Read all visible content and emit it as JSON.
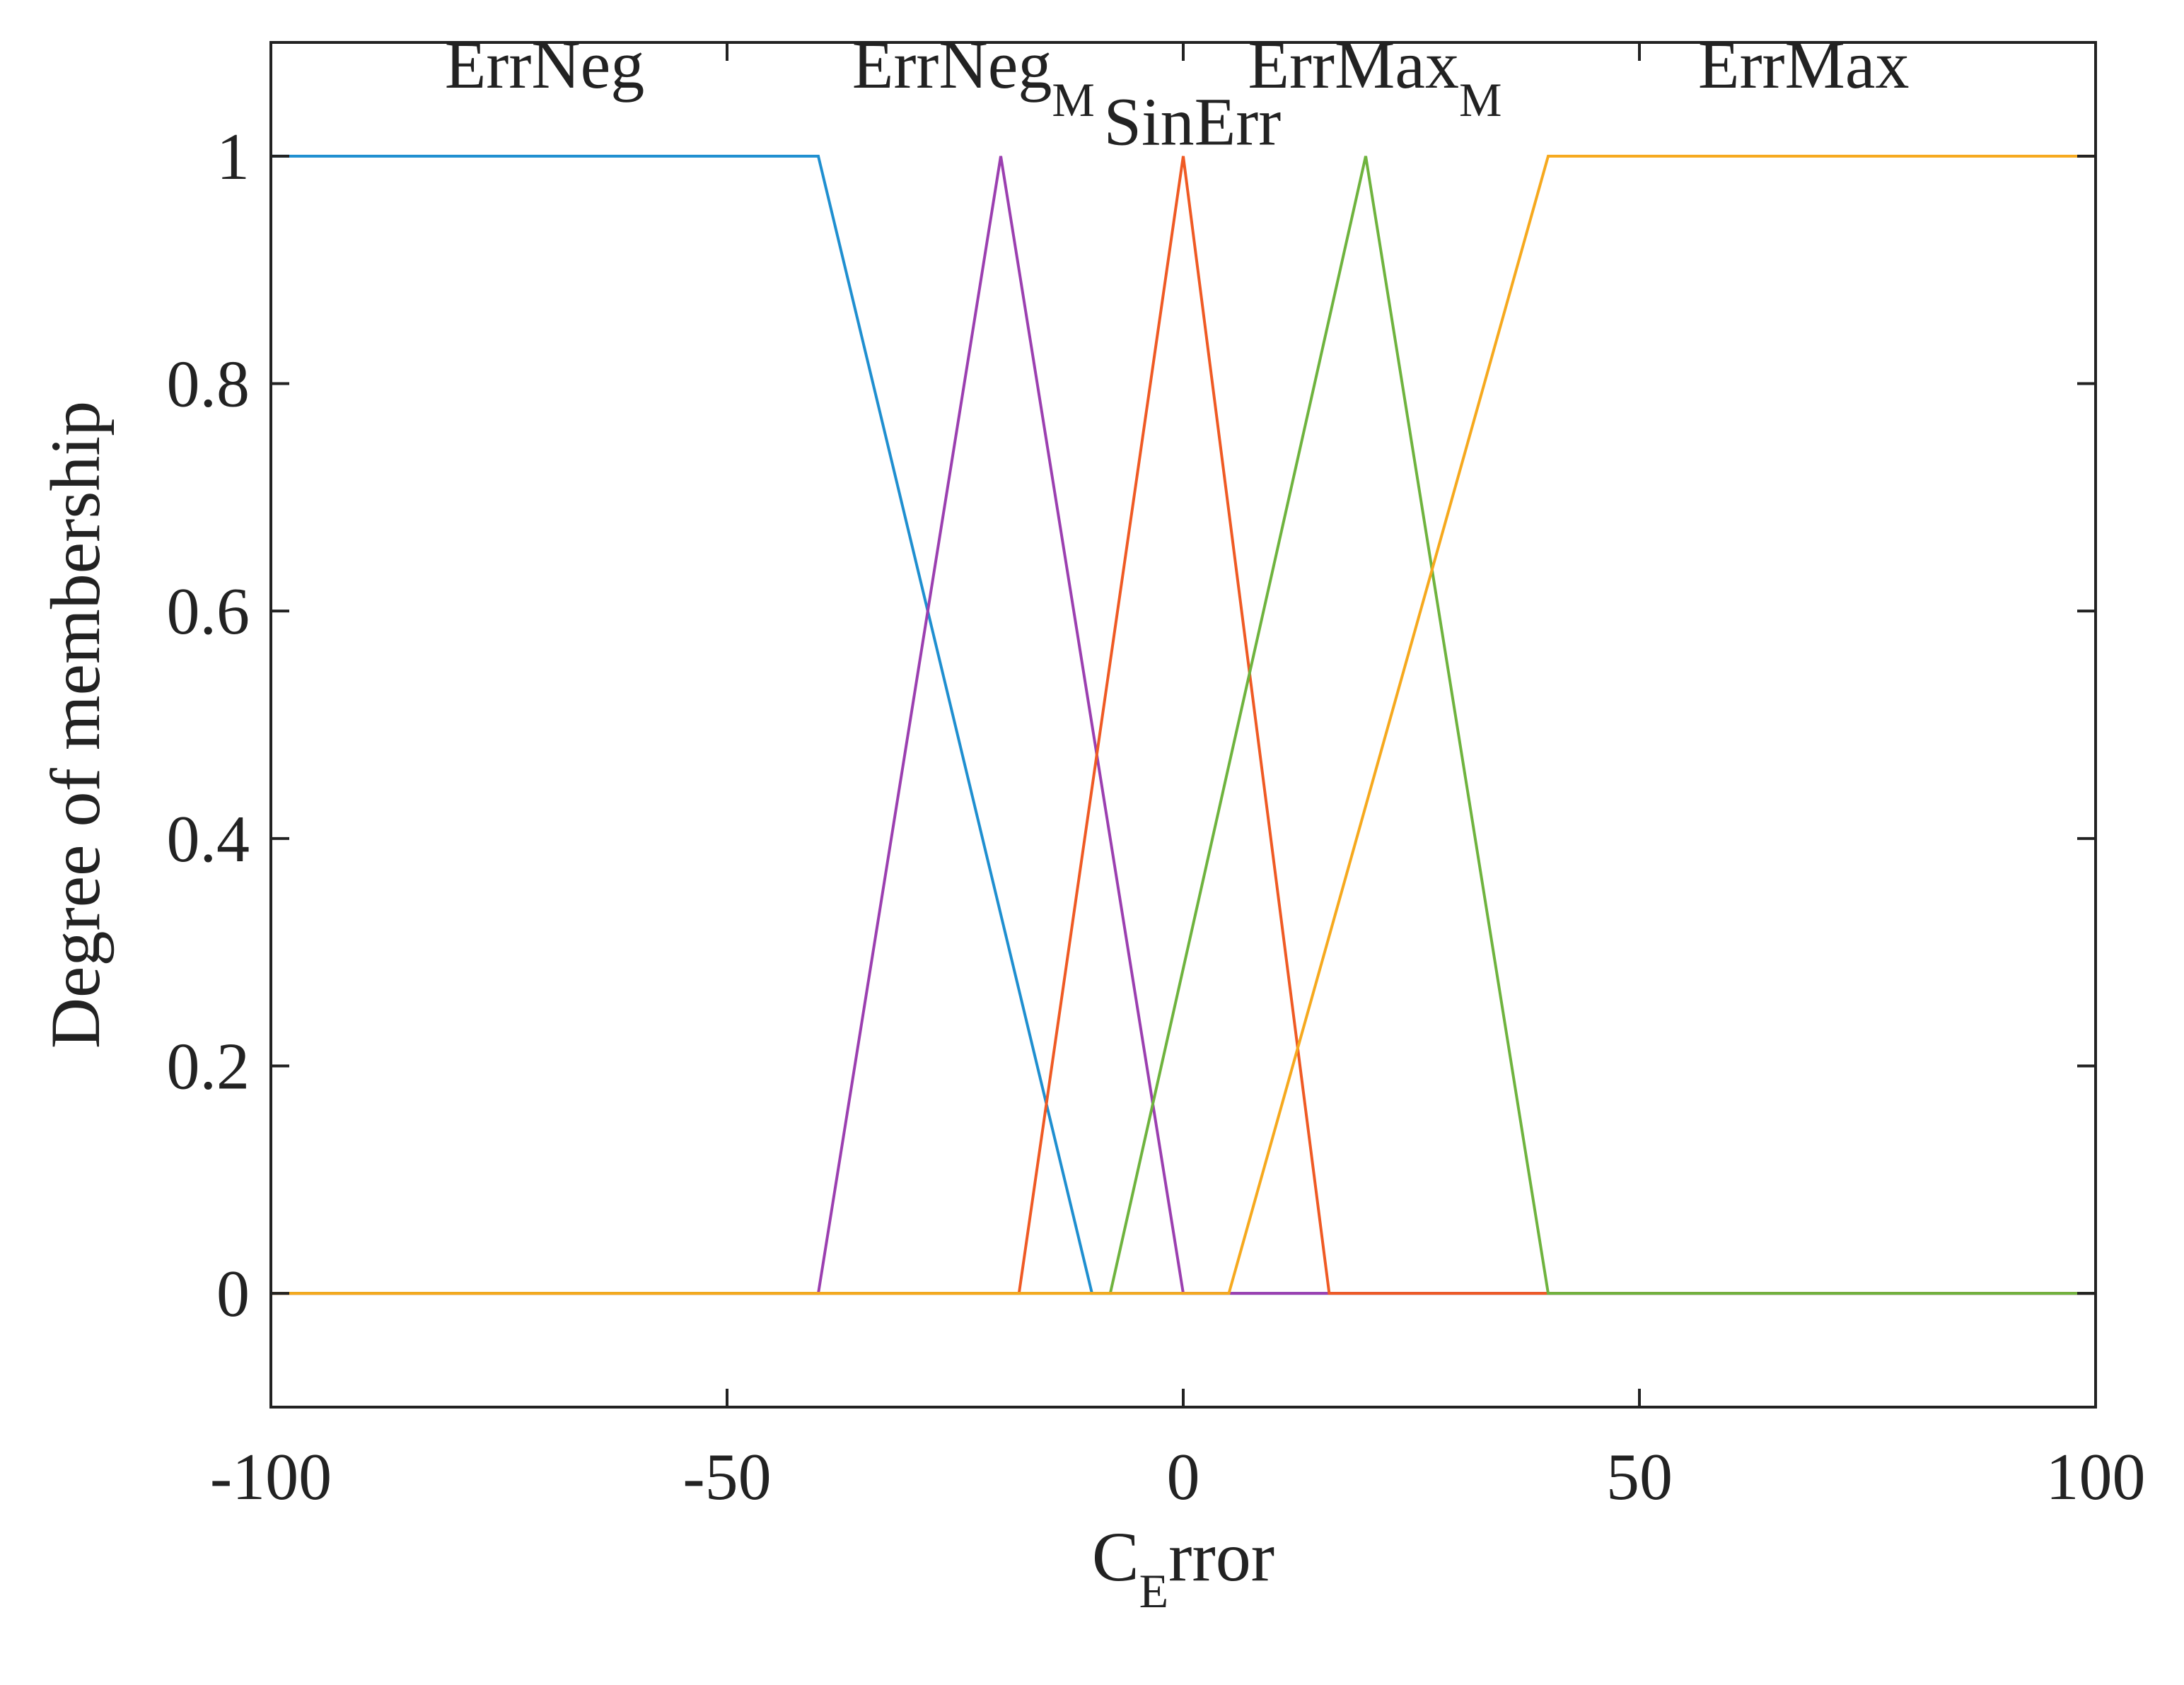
{
  "chart_data": {
    "type": "line",
    "title": "",
    "xlabel": {
      "main": "C",
      "subscript": "E",
      "suffix": "rror"
    },
    "ylabel": "Degree of membership",
    "xlim": [
      -100,
      100
    ],
    "ylim": [
      -0.1,
      1.1
    ],
    "xticks": [
      -100,
      -50,
      0,
      50,
      100
    ],
    "xtick_labels": [
      "-100",
      "-50",
      "0",
      "50",
      "100"
    ],
    "yticks": [
      0,
      0.2,
      0.4,
      0.6,
      0.8,
      1
    ],
    "ytick_labels": [
      "0",
      "0.2",
      "0.4",
      "0.6",
      "0.8",
      "1"
    ],
    "grid": false,
    "legend": "none",
    "series": [
      {
        "name": "ErrNeg",
        "label_text": "ErrNeg",
        "label_sub": "",
        "color": "#1f8fd0",
        "x": [
          -100,
          -40,
          -10,
          100
        ],
        "y": [
          1,
          1,
          0,
          0
        ],
        "label_at": [
          -70,
          1.08
        ]
      },
      {
        "name": "ErrNeg_M",
        "label_text": "ErrNeg",
        "label_sub": "M",
        "color": "#9b3fb0",
        "x": [
          -100,
          -40,
          -20,
          0,
          100
        ],
        "y": [
          0,
          0,
          1,
          0,
          0
        ],
        "label_at": [
          -23,
          1.08
        ]
      },
      {
        "name": "SinErr",
        "label_text": "SinErr",
        "label_sub": "",
        "color": "#ef5a24",
        "x": [
          -100,
          -18,
          0,
          16,
          100
        ],
        "y": [
          0,
          0,
          1,
          0,
          0
        ],
        "label_at": [
          1,
          1.03
        ]
      },
      {
        "name": "ErrMax_M",
        "label_text": "ErrMax",
        "label_sub": "M",
        "color": "#6fb33e",
        "x": [
          -100,
          -8,
          20,
          40,
          100
        ],
        "y": [
          0,
          0,
          1,
          0,
          0
        ],
        "label_at": [
          21,
          1.08
        ]
      },
      {
        "name": "ErrMax",
        "label_text": "ErrMax",
        "label_sub": "",
        "color": "#f6a91e",
        "x": [
          -100,
          5,
          40,
          100
        ],
        "y": [
          0,
          0,
          1,
          1
        ],
        "label_at": [
          68,
          1.08
        ]
      }
    ]
  }
}
